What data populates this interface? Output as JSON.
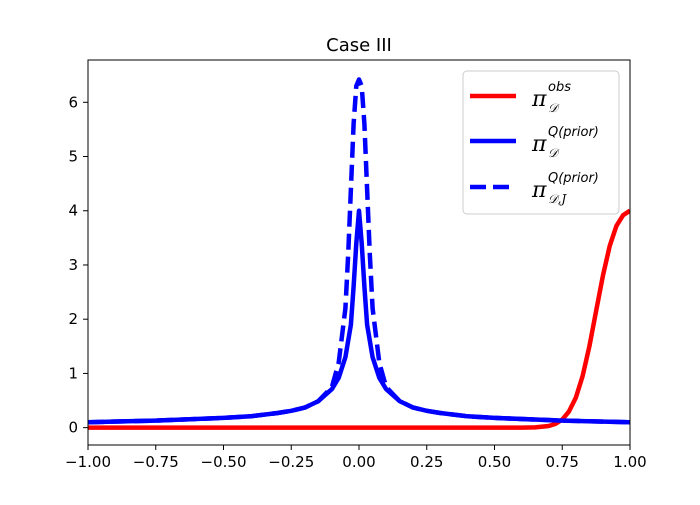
{
  "chart_data": {
    "type": "line",
    "title": "Case III",
    "xlabel": "",
    "ylabel": "",
    "xlim": [
      -1.0,
      1.0
    ],
    "ylim": [
      -0.32,
      6.78
    ],
    "xticks": [
      -1.0,
      -0.75,
      -0.5,
      -0.25,
      0.0,
      0.25,
      0.5,
      0.75,
      1.0
    ],
    "xtick_labels": [
      "−1.00",
      "−0.75",
      "−0.50",
      "−0.25",
      "0.00",
      "0.25",
      "0.50",
      "0.75",
      "1.00"
    ],
    "yticks": [
      0,
      1,
      2,
      3,
      4,
      5,
      6
    ],
    "ytick_labels": [
      "0",
      "1",
      "2",
      "3",
      "4",
      "5",
      "6"
    ],
    "grid": false,
    "legend_position": "top-right",
    "series": [
      {
        "name": "π_D^obs",
        "legend": {
          "main": "π",
          "sub": "𝒟",
          "sup": "obs"
        },
        "color": "#ff0000",
        "style": "solid",
        "x": [
          -1.0,
          0.6,
          0.65,
          0.7,
          0.725,
          0.75,
          0.775,
          0.8,
          0.825,
          0.85,
          0.875,
          0.9,
          0.925,
          0.95,
          0.975,
          1.0
        ],
        "y": [
          0.0,
          0.0,
          0.005,
          0.03,
          0.07,
          0.15,
          0.3,
          0.55,
          0.95,
          1.5,
          2.15,
          2.8,
          3.35,
          3.72,
          3.92,
          4.0
        ]
      },
      {
        "name": "π_D^Q(prior)",
        "legend": {
          "main": "π",
          "sub": "𝒟",
          "sup": "Q(prior)"
        },
        "color": "#0000ff",
        "style": "solid",
        "x": [
          -1.0,
          -0.75,
          -0.5,
          -0.4,
          -0.3,
          -0.25,
          -0.2,
          -0.15,
          -0.1,
          -0.075,
          -0.05,
          -0.03,
          -0.02,
          -0.01,
          0.0,
          0.01,
          0.02,
          0.03,
          0.05,
          0.075,
          0.1,
          0.15,
          0.2,
          0.25,
          0.3,
          0.4,
          0.5,
          0.75,
          1.0
        ],
        "y": [
          0.1,
          0.13,
          0.18,
          0.21,
          0.27,
          0.31,
          0.37,
          0.49,
          0.71,
          0.92,
          1.3,
          1.9,
          2.6,
          3.4,
          4.0,
          3.4,
          2.6,
          1.9,
          1.3,
          0.92,
          0.71,
          0.49,
          0.37,
          0.31,
          0.27,
          0.21,
          0.18,
          0.13,
          0.1
        ]
      },
      {
        "name": "π_D,J^Q(prior)",
        "legend": {
          "main": "π",
          "sub": "𝒟,J",
          "sup": "Q(prior)"
        },
        "color": "#0000ff",
        "style": "dashed",
        "x": [
          -1.0,
          -0.75,
          -0.5,
          -0.4,
          -0.3,
          -0.25,
          -0.2,
          -0.15,
          -0.1,
          -0.075,
          -0.05,
          -0.04,
          -0.03,
          -0.02,
          -0.01,
          0.0,
          0.01,
          0.02,
          0.03,
          0.04,
          0.05,
          0.075,
          0.1,
          0.15,
          0.2,
          0.25,
          0.3,
          0.4,
          0.5,
          0.75,
          1.0
        ],
        "y": [
          0.1,
          0.13,
          0.18,
          0.21,
          0.27,
          0.31,
          0.37,
          0.49,
          0.75,
          1.2,
          2.2,
          3.2,
          4.4,
          5.6,
          6.3,
          6.42,
          6.3,
          5.6,
          4.4,
          3.2,
          2.2,
          1.2,
          0.75,
          0.49,
          0.37,
          0.31,
          0.27,
          0.21,
          0.18,
          0.13,
          0.1
        ]
      }
    ]
  }
}
